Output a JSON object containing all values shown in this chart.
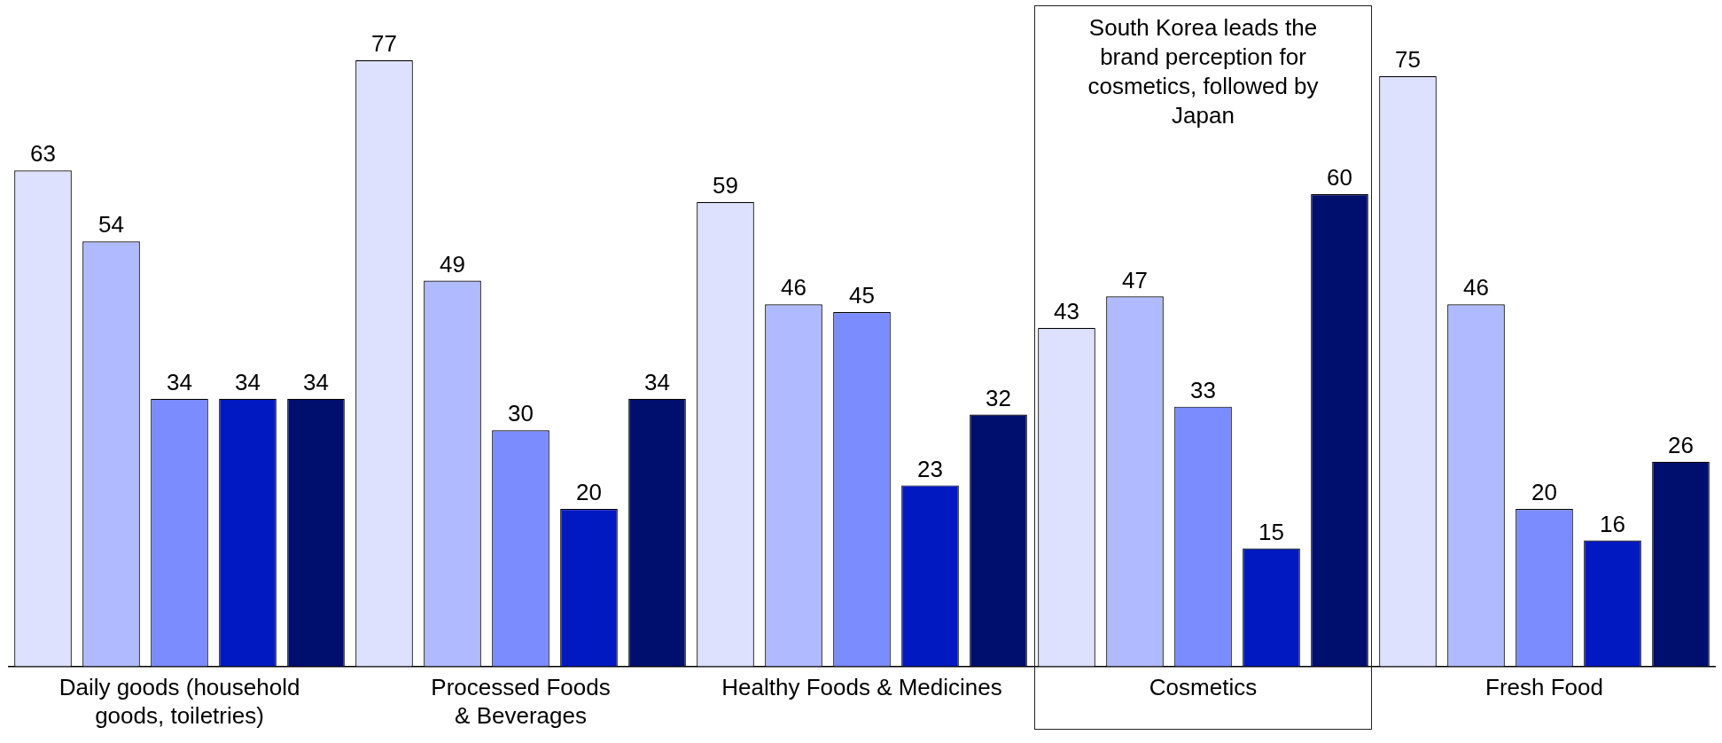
{
  "chart_data": {
    "type": "bar",
    "categories": [
      "Daily goods (household goods, toiletries)",
      "Processed Foods & Beverages",
      "Healthy Foods & Medicines",
      "Cosmetics",
      "Fresh Food"
    ],
    "series": [
      {
        "color": "#dde1fd",
        "values": [
          63,
          77,
          59,
          43,
          75
        ]
      },
      {
        "color": "#b0baff",
        "values": [
          54,
          49,
          46,
          47,
          46
        ]
      },
      {
        "color": "#7b8cff",
        "values": [
          34,
          30,
          45,
          33,
          20
        ]
      },
      {
        "color": "#0019c0",
        "values": [
          34,
          20,
          23,
          15,
          16
        ]
      },
      {
        "color": "#000e6e",
        "values": [
          34,
          34,
          32,
          60,
          26
        ]
      }
    ],
    "annotations": [
      "South Korea leads the brand perception for cosmetics, followed by Japan"
    ],
    "data_labels": true,
    "grid": false,
    "legend": false
  }
}
